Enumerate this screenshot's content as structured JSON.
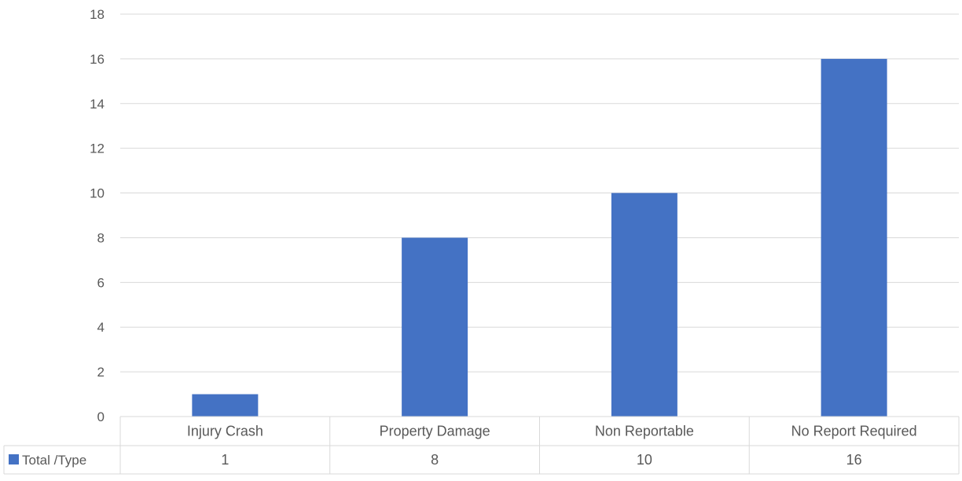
{
  "chart_data": {
    "type": "bar",
    "categories": [
      "Injury Crash",
      "Property Damage",
      "Non Reportable",
      "No Report Required"
    ],
    "series": [
      {
        "name": "Total /Type",
        "values": [
          1,
          8,
          10,
          16
        ],
        "color": "#4472C4"
      }
    ],
    "ylim": [
      0,
      18
    ],
    "yticks": [
      0,
      2,
      4,
      6,
      8,
      10,
      12,
      14,
      16,
      18
    ],
    "title": "",
    "xlabel": "",
    "ylabel": "",
    "grid": true,
    "legend": "data-table"
  }
}
